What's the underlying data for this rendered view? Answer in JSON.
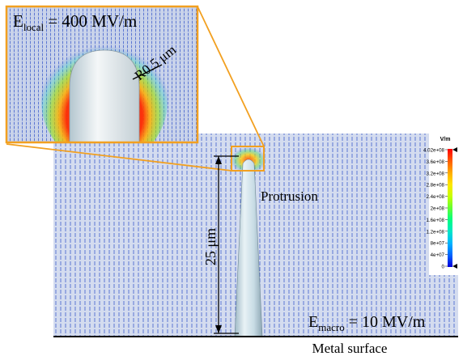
{
  "inset": {
    "e_local_base": "E",
    "e_local_sub": "local",
    "e_local_value": " = 400 MV/m",
    "radius_label": "R0.5 μm"
  },
  "main": {
    "protrusion_label": "Protrusion",
    "height_label": "25 μm",
    "e_macro_base": "E",
    "e_macro_sub": "macro",
    "e_macro_value": " = 10 MV/m",
    "surface_label": "Metal surface"
  },
  "colorbar": {
    "unit": "V/m",
    "ticks": [
      "4.02e+08",
      "3.6e+08",
      "3.2e+08",
      "2.8e+08",
      "2.4e+08",
      "2e+08",
      "1.6e+08",
      "1.2e+08",
      "8e+07",
      "4e+07",
      "0"
    ],
    "colors": [
      "#ff0000",
      "#ff5a00",
      "#ffaa00",
      "#ffe600",
      "#c8ff00",
      "#64ff32",
      "#00ff80",
      "#00e6c8",
      "#00b4ff",
      "#0064ff",
      "#0000dc"
    ]
  },
  "colors": {
    "accent_orange": "#f2a020",
    "field_blue": "#3d5dcc",
    "background_field": "#cfd9ee",
    "protrusion_fill": "#c8dde8"
  }
}
